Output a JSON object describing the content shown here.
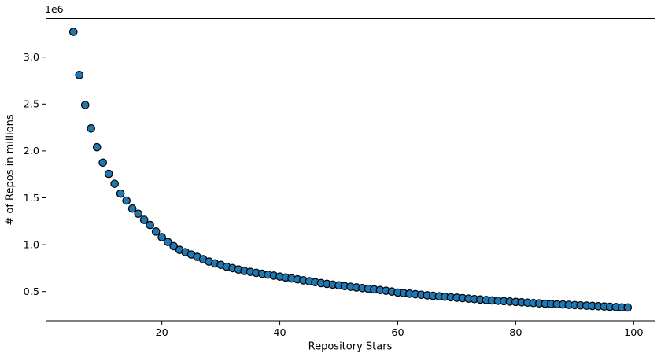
{
  "figure": {
    "background": "#ffffff"
  },
  "chart_data": {
    "type": "scatter",
    "title": "",
    "xlabel": "Repository Stars",
    "ylabel": "# of Repos in millions",
    "offset_text": "1e6",
    "grid": false,
    "legend": false,
    "xlim": [
      0.3,
      103.7
    ],
    "ylim": [
      183000,
      3417000
    ],
    "xticks": [
      20,
      40,
      60,
      80,
      100
    ],
    "xtick_labels": [
      "20",
      "40",
      "60",
      "80",
      "100"
    ],
    "yticks": [
      500000,
      1000000,
      1500000,
      2000000,
      2500000,
      3000000
    ],
    "ytick_labels": [
      "0.5",
      "1.0",
      "1.5",
      "2.0",
      "2.5",
      "3.0"
    ],
    "colors": {
      "marker_fill": "#1f77b4",
      "marker_edge": "#000000",
      "axis": "#000000",
      "tick_label": "#000000"
    },
    "x": [
      5,
      6,
      7,
      8,
      9,
      10,
      11,
      12,
      13,
      14,
      15,
      16,
      17,
      18,
      19,
      20,
      21,
      22,
      23,
      24,
      25,
      26,
      27,
      28,
      29,
      30,
      31,
      32,
      33,
      34,
      35,
      36,
      37,
      38,
      39,
      40,
      41,
      42,
      43,
      44,
      45,
      46,
      47,
      48,
      49,
      50,
      51,
      52,
      53,
      54,
      55,
      56,
      57,
      58,
      59,
      60,
      61,
      62,
      63,
      64,
      65,
      66,
      67,
      68,
      69,
      70,
      71,
      72,
      73,
      74,
      75,
      76,
      77,
      78,
      79,
      80,
      81,
      82,
      83,
      84,
      85,
      86,
      87,
      88,
      89,
      90,
      91,
      92,
      93,
      94,
      95,
      96,
      97,
      98,
      99
    ],
    "y": [
      3270000,
      2810000,
      2490000,
      2240000,
      2040000,
      1875000,
      1755000,
      1650000,
      1545000,
      1470000,
      1385000,
      1330000,
      1265000,
      1210000,
      1140000,
      1080000,
      1030000,
      985000,
      945000,
      920000,
      895000,
      870000,
      845000,
      820000,
      800000,
      785000,
      765000,
      750000,
      735000,
      720000,
      710000,
      700000,
      690000,
      680000,
      670000,
      660000,
      650000,
      640000,
      630000,
      620000,
      610000,
      600000,
      590000,
      582000,
      574000,
      566000,
      558000,
      551000,
      544000,
      537000,
      530000,
      523000,
      516000,
      509000,
      500000,
      490000,
      484000,
      478000,
      472000,
      466000,
      460000,
      455000,
      450000,
      445000,
      440000,
      435000,
      430000,
      425000,
      420000,
      415000,
      410000,
      406000,
      402000,
      398000,
      394000,
      390000,
      386000,
      382000,
      378000,
      374000,
      371000,
      368000,
      365000,
      362000,
      359000,
      356000,
      353000,
      350000,
      347000,
      344000,
      341000,
      338000,
      335000,
      332000,
      330000
    ]
  }
}
